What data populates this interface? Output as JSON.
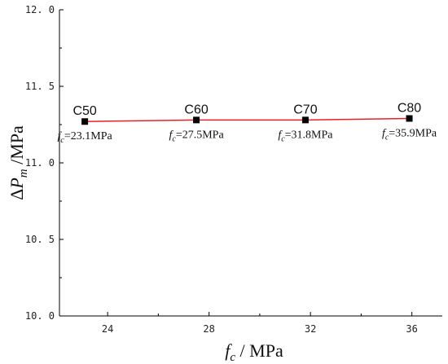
{
  "chart_data": {
    "type": "line",
    "x": [
      23.1,
      27.5,
      31.8,
      35.9
    ],
    "y": [
      11.27,
      11.28,
      11.28,
      11.29
    ],
    "point_labels": [
      "C50",
      "C60",
      "C70",
      "C80"
    ],
    "value_labels": [
      {
        "sym": "f",
        "sub": "c",
        "text": "=23.1MPa"
      },
      {
        "sym": "f",
        "sub": "c",
        "text": "=27.5MPa"
      },
      {
        "sym": "f",
        "sub": "c",
        "text": "=31.8MPa"
      },
      {
        "sym": "f",
        "sub": "c",
        "text": "=35.9MPa"
      }
    ],
    "xlim": [
      22.1,
      37.2
    ],
    "ylim": [
      10.0,
      12.0
    ],
    "xticks": [
      24,
      28,
      32,
      36
    ],
    "yticks": [
      10.0,
      10.5,
      11.0,
      11.5,
      12.0
    ],
    "xtick_labels": [
      "24",
      "28",
      "32",
      "36"
    ],
    "ytick_labels": [
      "10. 0",
      "10. 5",
      "11. 0",
      "11. 5",
      "12. 0"
    ],
    "xlabel": {
      "sym": "f",
      "sub": "c",
      "rest": " / MPa"
    },
    "ylabel": {
      "pre": "Δ",
      "sym": "P",
      "sub": "m",
      "rest": " /MPa"
    },
    "line_color": "#e8202a",
    "marker_color": "#000000",
    "grid": false
  }
}
